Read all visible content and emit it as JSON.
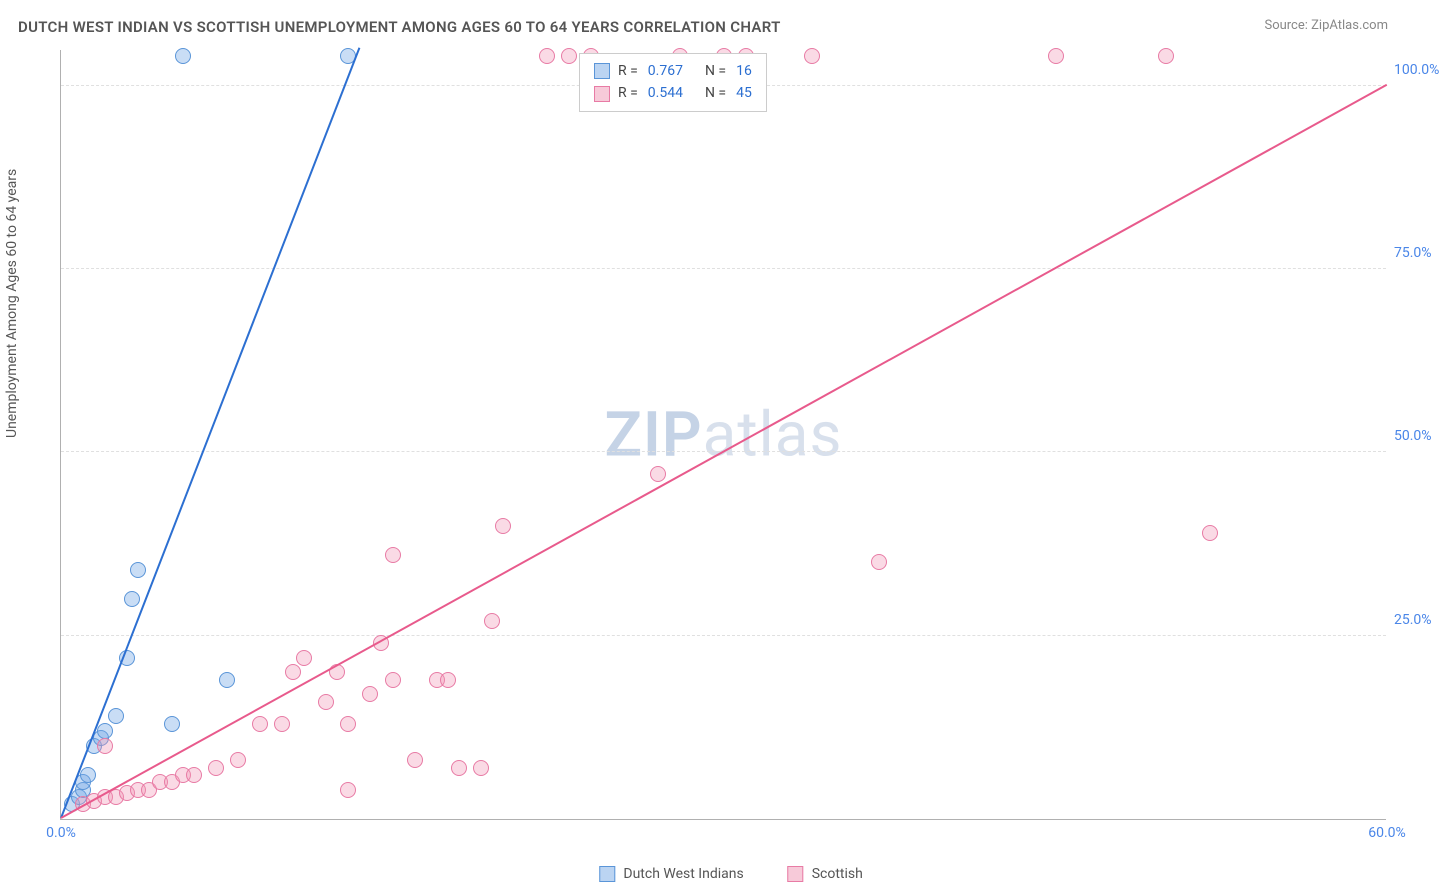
{
  "title": "DUTCH WEST INDIAN VS SCOTTISH UNEMPLOYMENT AMONG AGES 60 TO 64 YEARS CORRELATION CHART",
  "source": "Source: ZipAtlas.com",
  "ylabel": "Unemployment Among Ages 60 to 64 years",
  "watermark_bold": "ZIP",
  "watermark_rest": "atlas",
  "chart": {
    "type": "scatter",
    "xlim": [
      0,
      60
    ],
    "ylim": [
      0,
      105
    ],
    "yticks": [
      25,
      50,
      75,
      100
    ],
    "ytick_labels": [
      "25.0%",
      "50.0%",
      "75.0%",
      "100.0%"
    ],
    "xticks": [
      0,
      60
    ],
    "xtick_labels": [
      "0.0%",
      "60.0%"
    ],
    "background_color": "#ffffff",
    "grid_color": "#e0e0e0",
    "series": [
      {
        "name": "Dutch West Indians",
        "color_fill": "rgba(120,170,230,0.4)",
        "color_stroke": "#5a95d8",
        "trend_color": "#2c6fd1",
        "marker_size": 16,
        "R": 0.767,
        "N": 16,
        "trend": {
          "x1": 0,
          "y1": 0,
          "x2": 13.5,
          "y2": 105
        },
        "points": [
          [
            0.5,
            2
          ],
          [
            0.8,
            3
          ],
          [
            1.0,
            4
          ],
          [
            1.0,
            5
          ],
          [
            1.2,
            6
          ],
          [
            1.5,
            10
          ],
          [
            1.8,
            11
          ],
          [
            2.0,
            12
          ],
          [
            2.5,
            14
          ],
          [
            3.0,
            22
          ],
          [
            3.2,
            30
          ],
          [
            3.5,
            34
          ],
          [
            5.0,
            13
          ],
          [
            7.5,
            19
          ],
          [
            5.5,
            104
          ],
          [
            13.0,
            104
          ]
        ]
      },
      {
        "name": "Scottish",
        "color_fill": "rgba(240,150,180,0.35)",
        "color_stroke": "#e87ba5",
        "trend_color": "#e85a8c",
        "marker_size": 16,
        "R": 0.544,
        "N": 45,
        "trend": {
          "x1": 0,
          "y1": 0,
          "x2": 60,
          "y2": 100
        },
        "points": [
          [
            1.0,
            2
          ],
          [
            1.5,
            2.5
          ],
          [
            2.0,
            3
          ],
          [
            2.5,
            3
          ],
          [
            3.0,
            3.5
          ],
          [
            3.5,
            4
          ],
          [
            4.0,
            4
          ],
          [
            4.5,
            5
          ],
          [
            5.0,
            5
          ],
          [
            5.5,
            6
          ],
          [
            6.0,
            6
          ],
          [
            7.0,
            7
          ],
          [
            8.0,
            8
          ],
          [
            9.0,
            13
          ],
          [
            10.0,
            13
          ],
          [
            10.5,
            20
          ],
          [
            11.0,
            22
          ],
          [
            12.0,
            16
          ],
          [
            12.5,
            20
          ],
          [
            13.0,
            4
          ],
          [
            13.0,
            13
          ],
          [
            14.0,
            17
          ],
          [
            14.5,
            24
          ],
          [
            15.0,
            19
          ],
          [
            15.0,
            36
          ],
          [
            16.0,
            8
          ],
          [
            17.0,
            19
          ],
          [
            17.5,
            19
          ],
          [
            18.0,
            7
          ],
          [
            19.0,
            7
          ],
          [
            19.5,
            27
          ],
          [
            20.0,
            40
          ],
          [
            22.0,
            104
          ],
          [
            23.0,
            104
          ],
          [
            24.0,
            104
          ],
          [
            27.0,
            47
          ],
          [
            28.0,
            104
          ],
          [
            30.0,
            104
          ],
          [
            31.0,
            104
          ],
          [
            34.0,
            104
          ],
          [
            37.0,
            35
          ],
          [
            52.0,
            39
          ],
          [
            45.0,
            104
          ],
          [
            50.0,
            104
          ],
          [
            2.0,
            10
          ]
        ]
      }
    ]
  },
  "legend_top": {
    "rows": [
      {
        "swatch": "blue",
        "R_label": "R  =",
        "R_val": "0.767",
        "N_label": "N  =",
        "N_val": "16"
      },
      {
        "swatch": "pink",
        "R_label": "R  =",
        "R_val": "0.544",
        "N_label": "N  =",
        "N_val": "45"
      }
    ]
  },
  "legend_bottom": {
    "items": [
      {
        "swatch": "blue",
        "label": "Dutch West Indians"
      },
      {
        "swatch": "pink",
        "label": "Scottish"
      }
    ]
  }
}
